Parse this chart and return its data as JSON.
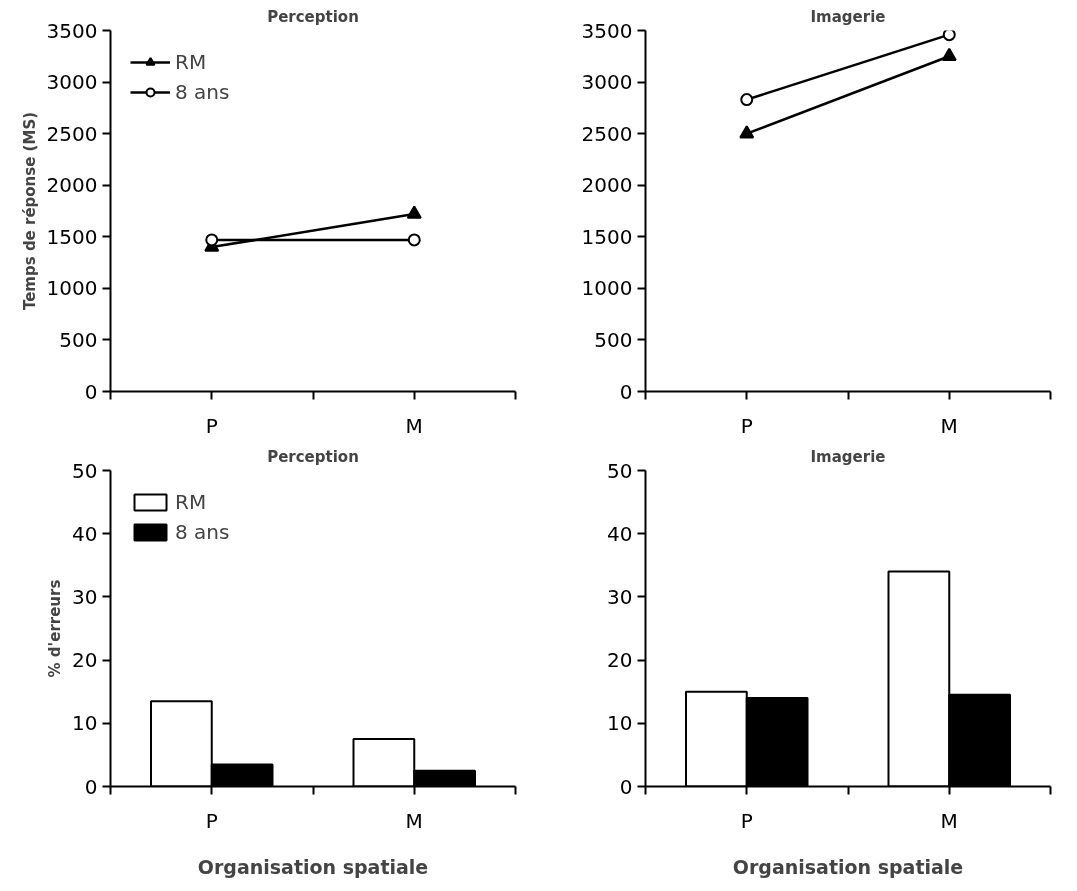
{
  "chart_data": [
    {
      "type": "line",
      "title": "Perception",
      "ylabel": "Temps de réponse (MS)",
      "categories": [
        "P",
        "M"
      ],
      "ylim": [
        0,
        3500
      ],
      "yticks": [
        0,
        500,
        1000,
        1500,
        2000,
        2500,
        3000,
        3500
      ],
      "grid": false,
      "legend": "top left",
      "series": [
        {
          "name": "RM",
          "color": "#000000",
          "marker": "triangle",
          "values": [
            1400,
            1720
          ]
        },
        {
          "name": "8 ans",
          "color": "#000000",
          "marker": "circle",
          "values": [
            1470,
            1470
          ]
        }
      ]
    },
    {
      "type": "line",
      "title": "Imagerie",
      "categories": [
        "P",
        "M"
      ],
      "ylim": [
        0,
        3500
      ],
      "yticks": [
        0,
        500,
        1000,
        1500,
        2000,
        2500,
        3000,
        3500
      ],
      "grid": false,
      "series": [
        {
          "color": "#000000",
          "marker": "triangle",
          "values": [
            2500,
            3250
          ]
        },
        {
          "color": "#000000",
          "marker": "circle",
          "values": [
            2830,
            3460
          ]
        }
      ]
    },
    {
      "type": "bar",
      "title": "Perception",
      "ylabel": "% d'erreurs",
      "xlabel": "Organisation spatiale",
      "categories": [
        "P",
        "M"
      ],
      "ylim": [
        0,
        50
      ],
      "yticks": [
        0,
        10,
        20,
        30,
        40,
        50
      ],
      "grid": false,
      "legend": "top left",
      "series": [
        {
          "name": "RM",
          "color": "#ffffff",
          "values": [
            13.5,
            7.5
          ]
        },
        {
          "name": "8 ans",
          "color": "#000000",
          "values": [
            3.5,
            2.5
          ]
        }
      ]
    },
    {
      "type": "bar",
      "title": "Imagerie",
      "xlabel": "Organisation spatiale",
      "categories": [
        "P",
        "M"
      ],
      "ylim": [
        0,
        50
      ],
      "yticks": [
        0,
        10,
        20,
        30,
        40,
        50
      ],
      "grid": false,
      "series": [
        {
          "color": "#ffffff",
          "values": [
            15,
            34
          ]
        },
        {
          "color": "#000000",
          "values": [
            14,
            14.5
          ]
        }
      ]
    }
  ]
}
